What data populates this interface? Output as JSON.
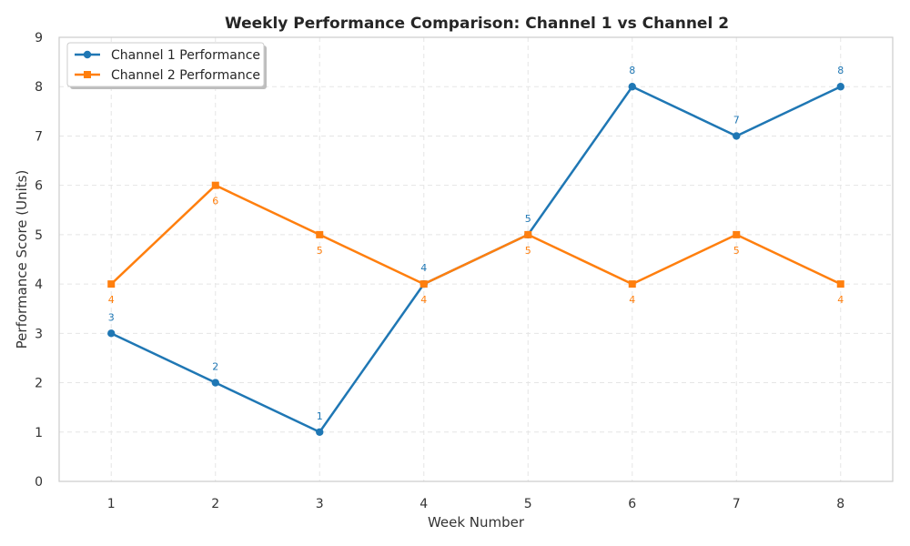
{
  "chart_data": {
    "type": "line",
    "title": "Weekly Performance Comparison: Channel 1 vs Channel 2",
    "xlabel": "Week Number",
    "ylabel": "Performance Score (Units)",
    "x": [
      1,
      2,
      3,
      4,
      5,
      6,
      7,
      8
    ],
    "xlim": [
      0.5,
      8.5
    ],
    "ylim": [
      0,
      9
    ],
    "yticks": [
      0,
      1,
      2,
      3,
      4,
      5,
      6,
      7,
      8,
      9
    ],
    "grid": true,
    "legend_position": "top-left",
    "series": [
      {
        "name": "Channel 1 Performance",
        "values": [
          3,
          2,
          1,
          4,
          5,
          8,
          7,
          8
        ],
        "color": "#1f77b4",
        "marker": "circle",
        "label_position": "above"
      },
      {
        "name": "Channel 2 Performance",
        "values": [
          4,
          6,
          5,
          4,
          5,
          4,
          5,
          4
        ],
        "color": "#ff7f0e",
        "marker": "square",
        "label_position": "below"
      }
    ]
  }
}
